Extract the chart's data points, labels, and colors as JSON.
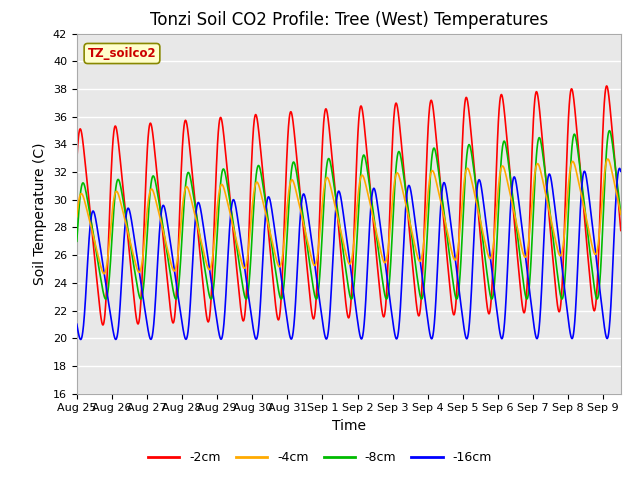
{
  "title": "Tonzi Soil CO2 Profile: Tree (West) Temperatures",
  "xlabel": "Time",
  "ylabel": "Soil Temperature (C)",
  "ylim": [
    16,
    42
  ],
  "yticks": [
    16,
    18,
    20,
    22,
    24,
    26,
    28,
    30,
    32,
    34,
    36,
    38,
    40,
    42
  ],
  "legend_label": "TZ_soilco2",
  "series_labels": [
    "-2cm",
    "-4cm",
    "-8cm",
    "-16cm"
  ],
  "series_colors": [
    "#ff0000",
    "#ffaa00",
    "#00bb00",
    "#0000ff"
  ],
  "background_color": "#ffffff",
  "plot_bg_color": "#e8e8e8",
  "xtick_labels": [
    "Aug 25",
    "Aug 26",
    "Aug 27",
    "Aug 28",
    "Aug 29",
    "Aug 30",
    "Aug 31",
    "Sep 1",
    "Sep 2",
    "Sep 3",
    "Sep 4",
    "Sep 5",
    "Sep 6",
    "Sep 7",
    "Sep 8",
    "Sep 9"
  ],
  "title_fontsize": 12,
  "axis_label_fontsize": 10,
  "tick_fontsize": 8
}
